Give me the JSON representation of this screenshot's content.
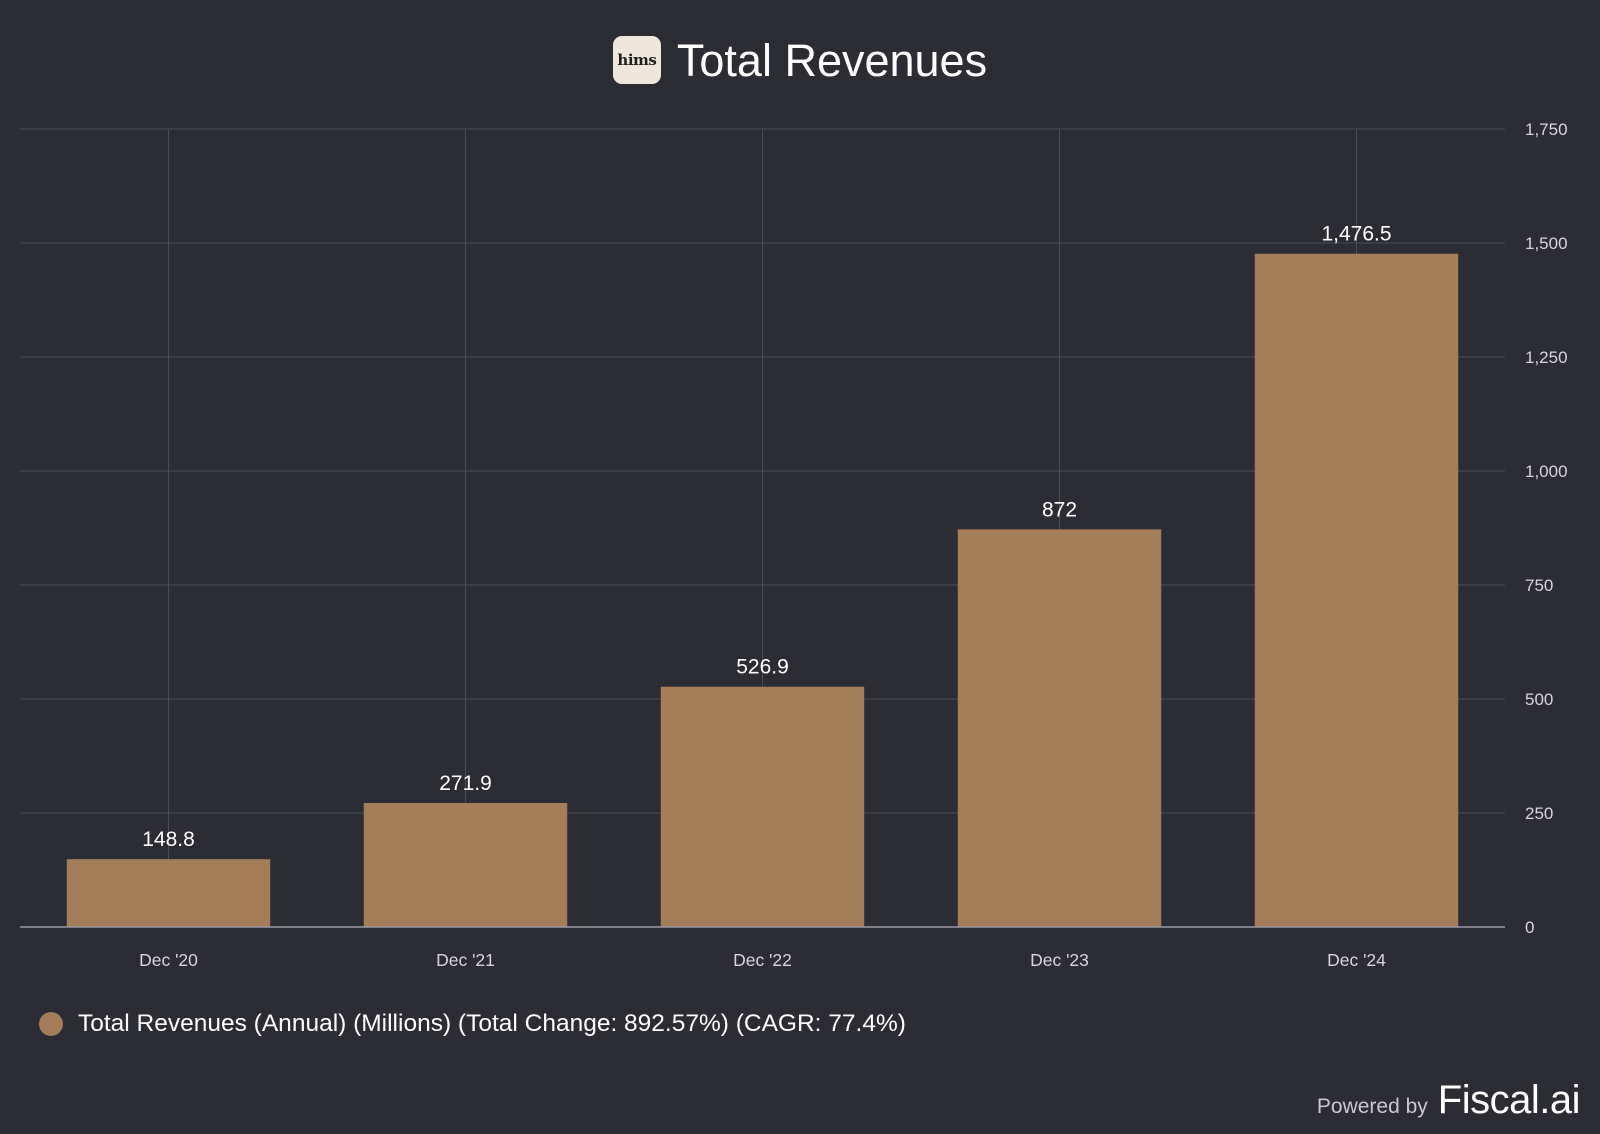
{
  "header": {
    "logo_text": "hims",
    "title": "Total Revenues"
  },
  "chart_data": {
    "type": "bar",
    "title": "Total Revenues",
    "categories": [
      "Dec '20",
      "Dec '21",
      "Dec '22",
      "Dec '23",
      "Dec '24"
    ],
    "values": [
      148.8,
      271.9,
      526.9,
      872,
      1476.5
    ],
    "value_labels": [
      "148.8",
      "271.9",
      "526.9",
      "872",
      "1,476.5"
    ],
    "yticks": [
      0,
      250,
      500,
      750,
      1000,
      1250,
      1500,
      1750
    ],
    "ytick_labels": [
      "0",
      "250",
      "500",
      "750",
      "1,000",
      "1,250",
      "1,500",
      "1,750"
    ],
    "ylim": [
      0,
      1750
    ],
    "y_axis_side": "right",
    "grid": true,
    "bar_color": "#a47e59",
    "series": [
      {
        "name": "Total Revenues (Annual) (Millions) (Total Change: 892.57%) (CAGR: 77.4%)",
        "values": [
          148.8,
          271.9,
          526.9,
          872,
          1476.5
        ]
      }
    ],
    "legend_position": "bottom-left"
  },
  "legend": {
    "label": "Total Revenues (Annual) (Millions) (Total Change: 892.57%) (CAGR: 77.4%)",
    "color": "#a47e59"
  },
  "footer": {
    "powered_by": "Powered by",
    "brand": "Fiscal.ai"
  },
  "colors": {
    "background": "#2b2c34",
    "grid": "#4a4b54",
    "axis": "#9a9aa3",
    "bar": "#a47e59"
  }
}
